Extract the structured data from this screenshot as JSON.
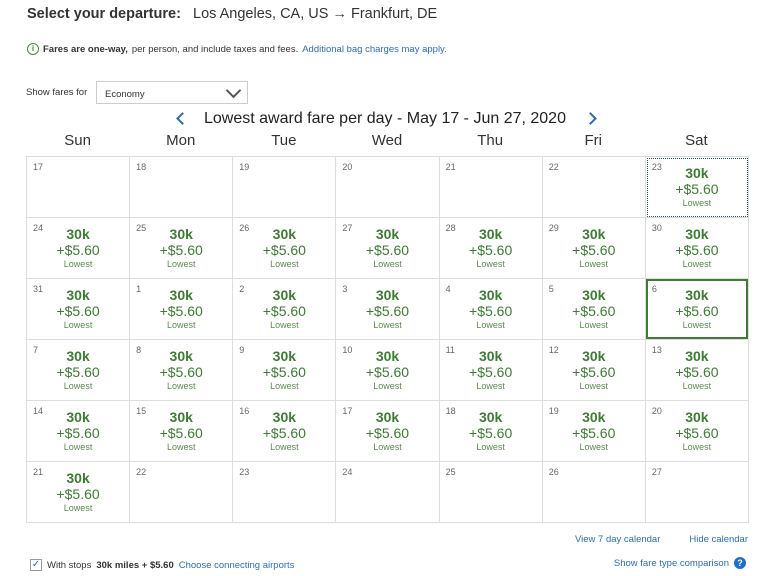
{
  "header": {
    "label": "Select your departure:",
    "route": "Los Angeles, CA, US → Frankfurt, DE"
  },
  "info": {
    "bold": "Fares are one-way,",
    "text": "per person, and include taxes and fees.",
    "link": "Additional bag charges may apply."
  },
  "fare_select": {
    "label": "Show fares for",
    "value": "Economy"
  },
  "calendar": {
    "title": "Lowest award fare per day - May 17 - Jun 27, 2020",
    "days": [
      "Sun",
      "Mon",
      "Tue",
      "Wed",
      "Thu",
      "Fri",
      "Sat"
    ],
    "fare": {
      "miles": "30k",
      "tax": "+$5.60",
      "tag": "Lowest"
    },
    "cells": [
      {
        "d": "17"
      },
      {
        "d": "18"
      },
      {
        "d": "19"
      },
      {
        "d": "20"
      },
      {
        "d": "21"
      },
      {
        "d": "22"
      },
      {
        "d": "23",
        "f": true,
        "focus": true
      },
      {
        "d": "24",
        "f": true
      },
      {
        "d": "25",
        "f": true
      },
      {
        "d": "26",
        "f": true
      },
      {
        "d": "27",
        "f": true
      },
      {
        "d": "28",
        "f": true
      },
      {
        "d": "29",
        "f": true
      },
      {
        "d": "30",
        "f": true
      },
      {
        "d": "31",
        "f": true
      },
      {
        "d": "1",
        "f": true
      },
      {
        "d": "2",
        "f": true
      },
      {
        "d": "3",
        "f": true
      },
      {
        "d": "4",
        "f": true
      },
      {
        "d": "5",
        "f": true
      },
      {
        "d": "6",
        "f": true,
        "selected": true
      },
      {
        "d": "7",
        "f": true
      },
      {
        "d": "8",
        "f": true
      },
      {
        "d": "9",
        "f": true
      },
      {
        "d": "10",
        "f": true
      },
      {
        "d": "11",
        "f": true
      },
      {
        "d": "12",
        "f": true
      },
      {
        "d": "13",
        "f": true
      },
      {
        "d": "14",
        "f": true
      },
      {
        "d": "15",
        "f": true
      },
      {
        "d": "16",
        "f": true
      },
      {
        "d": "17",
        "f": true
      },
      {
        "d": "18",
        "f": true
      },
      {
        "d": "19",
        "f": true
      },
      {
        "d": "20",
        "f": true
      },
      {
        "d": "21",
        "f": true
      },
      {
        "d": "22"
      },
      {
        "d": "23"
      },
      {
        "d": "24"
      },
      {
        "d": "25"
      },
      {
        "d": "26"
      },
      {
        "d": "27"
      }
    ]
  },
  "links": {
    "seven_day": "View 7 day calendar",
    "hide": "Hide calendar",
    "compare": "Show fare type comparison"
  },
  "stops": {
    "checked": true,
    "label": "With stops",
    "price": "30k miles + $5.60",
    "link": "Choose connecting airports"
  },
  "colors": {
    "fare_green": "#3f7a36",
    "link_blue": "#2f6da9"
  }
}
